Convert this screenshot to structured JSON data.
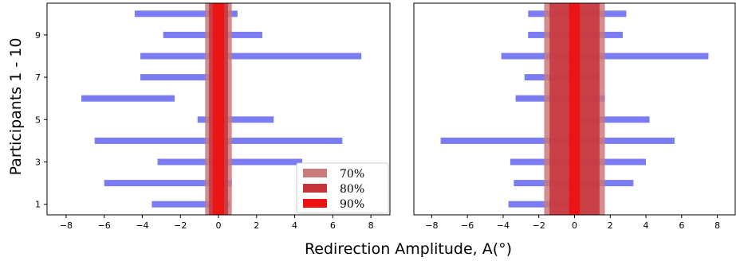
{
  "chart_data": {
    "type": "bar",
    "xlabel": "Redirection Amplitude, A(°)",
    "ylabel": "Participants 1 - 10",
    "xlim": [
      -9,
      9
    ],
    "ylim": [
      0.5,
      10.5
    ],
    "xticks": [
      -8,
      -6,
      -4,
      -2,
      0,
      2,
      4,
      6,
      8
    ],
    "xtick_labels": [
      "−8",
      "−6",
      "−4",
      "−2",
      "0",
      "2",
      "4",
      "6",
      "8"
    ],
    "yticks": [
      1,
      3,
      5,
      7,
      9
    ],
    "ytick_labels": [
      "1",
      "3",
      "5",
      "7",
      "9"
    ],
    "bar_color": "#7b7bf2",
    "legend": {
      "placement": "lower-right",
      "entries": [
        {
          "label": "70%",
          "color": "#c97a7a"
        },
        {
          "label": "80%",
          "color": "#c8333a"
        },
        {
          "label": "90%",
          "color": "#ee1111"
        }
      ]
    },
    "panels": [
      {
        "name": "left",
        "ranges": [
          {
            "participant": 1,
            "low": -3.5,
            "high": 0.6
          },
          {
            "participant": 2,
            "low": -6.0,
            "high": 0.7
          },
          {
            "participant": 3,
            "low": -3.2,
            "high": 4.4
          },
          {
            "participant": 4,
            "low": -6.5,
            "high": 6.5
          },
          {
            "participant": 5,
            "low": -1.1,
            "high": 2.9
          },
          {
            "participant": 6,
            "low": -7.2,
            "high": -2.3
          },
          {
            "participant": 7,
            "low": -4.1,
            "high": 0.0
          },
          {
            "participant": 8,
            "low": -4.1,
            "high": 7.5
          },
          {
            "participant": 9,
            "low": -2.9,
            "high": 2.3
          },
          {
            "participant": 10,
            "low": -4.4,
            "high": 1.0
          }
        ],
        "bands": [
          {
            "level": "70%",
            "low": -0.7,
            "high": 0.7
          },
          {
            "level": "80%",
            "low": -0.5,
            "high": 0.5
          },
          {
            "level": "90%",
            "low": -0.3,
            "high": 0.3
          }
        ]
      },
      {
        "name": "right",
        "ranges": [
          {
            "participant": 1,
            "low": -3.7,
            "high": 0.3
          },
          {
            "participant": 2,
            "low": -3.4,
            "high": 3.3
          },
          {
            "participant": 3,
            "low": -3.6,
            "high": 4.0
          },
          {
            "participant": 4,
            "low": -7.5,
            "high": 5.6
          },
          {
            "participant": 5,
            "low": 0.3,
            "high": 4.2
          },
          {
            "participant": 6,
            "low": -3.3,
            "high": 1.7
          },
          {
            "participant": 7,
            "low": -2.8,
            "high": 1.4
          },
          {
            "participant": 8,
            "low": -4.1,
            "high": 7.5
          },
          {
            "participant": 9,
            "low": -2.6,
            "high": 2.7
          },
          {
            "participant": 10,
            "low": -2.6,
            "high": 2.9
          }
        ],
        "bands": [
          {
            "level": "70%",
            "low": -1.7,
            "high": 1.7
          },
          {
            "level": "80%",
            "low": -1.4,
            "high": 1.4
          },
          {
            "level": "90%",
            "low": -0.3,
            "high": 0.3
          }
        ]
      }
    ]
  }
}
